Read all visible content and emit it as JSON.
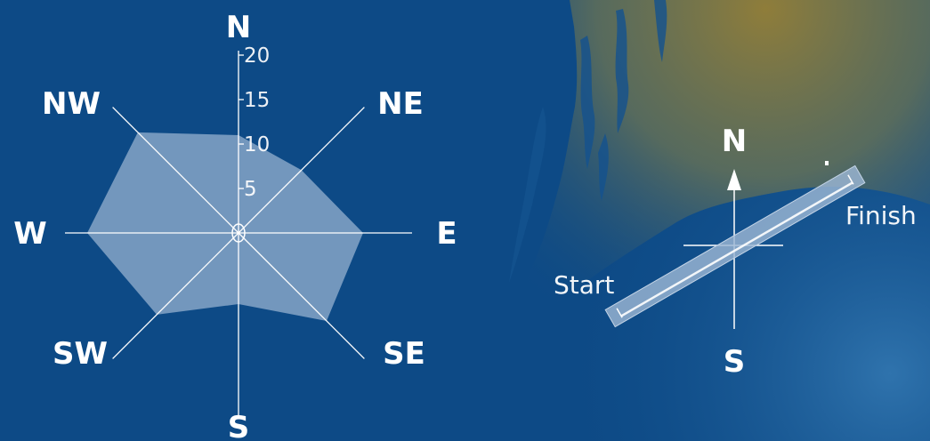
{
  "colors": {
    "background": "#0d4a86",
    "background_right": "#1f6aa8",
    "land_glow": "#8a7a3c",
    "radar_fill": "#9bb6d3",
    "lines": "#ffffff",
    "text": "#ffffff",
    "course_bar": "#9bb6d3"
  },
  "chart_data": [
    {
      "type": "radar",
      "title": "",
      "directions": [
        "N",
        "NE",
        "E",
        "SE",
        "S",
        "SW",
        "W",
        "NW"
      ],
      "values": [
        11,
        10,
        14,
        14,
        8,
        13,
        17,
        16
      ],
      "ticks": [
        "5",
        "10",
        "15",
        "20"
      ],
      "rlim": [
        0,
        20
      ],
      "grid": false,
      "legend": "none"
    },
    {
      "type": "course",
      "title": "",
      "compass": {
        "north": "N",
        "south": "S"
      },
      "labels": {
        "start": "Start",
        "finish": "Finish"
      },
      "axis_bearing_deg": 60
    }
  ]
}
